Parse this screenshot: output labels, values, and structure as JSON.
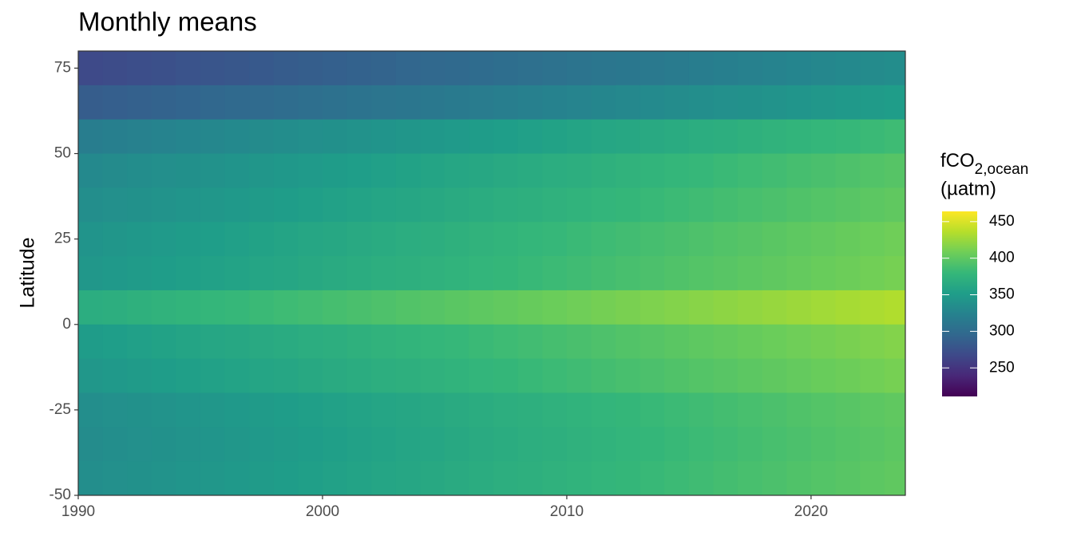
{
  "chart_data": {
    "type": "heatmap",
    "title": "Monthly means",
    "y_label": "Latitude",
    "legend_title": {
      "main": "fCO",
      "sub": "2,ocean",
      "unit": "(µatm)"
    },
    "colormap": "viridis",
    "x": [
      1990,
      1991,
      1992,
      1993,
      1994,
      1995,
      1996,
      1997,
      1998,
      1999,
      2000,
      2001,
      2002,
      2003,
      2004,
      2005,
      2006,
      2007,
      2008,
      2009,
      2010,
      2011,
      2012,
      2013,
      2014,
      2015,
      2016,
      2017,
      2018,
      2019,
      2020,
      2021,
      2022,
      2023
    ],
    "y": [
      70,
      60,
      50,
      40,
      30,
      20,
      10,
      0,
      -10,
      -20,
      -30,
      -40,
      -50
    ],
    "z": [
      [
        268,
        270,
        272,
        274,
        276,
        278,
        280,
        282,
        284,
        286,
        288,
        290,
        292,
        294,
        296,
        298,
        300,
        302,
        304,
        306,
        308,
        310,
        312,
        314,
        316,
        318,
        320,
        322,
        324,
        326,
        328,
        330,
        332,
        334
      ],
      [
        285,
        287,
        289,
        291,
        293,
        295,
        297,
        299,
        301,
        303,
        305,
        307,
        309,
        311,
        313,
        315,
        317,
        319,
        321,
        323,
        325,
        327,
        329,
        331,
        333,
        335,
        337,
        339,
        341,
        343,
        345,
        347,
        349,
        351
      ],
      [
        318,
        320,
        322,
        324,
        326,
        328,
        330,
        332,
        334,
        336,
        338,
        340,
        342,
        344,
        346,
        348,
        350,
        352,
        354,
        356,
        358,
        360,
        362,
        364,
        366,
        368,
        370,
        372,
        374,
        376,
        378,
        380,
        382,
        384
      ],
      [
        330,
        332,
        334,
        336,
        338,
        340,
        342,
        344,
        346,
        348,
        350,
        352,
        354,
        356,
        358,
        360,
        362,
        364,
        366,
        368,
        370,
        372,
        374,
        376,
        378,
        380,
        382,
        384,
        386,
        388,
        390,
        392,
        394,
        396
      ],
      [
        335,
        337,
        339,
        341,
        343,
        345,
        347,
        349,
        351,
        353,
        355,
        357,
        359,
        361,
        363,
        365,
        367,
        369,
        371,
        373,
        375,
        377,
        379,
        381,
        383,
        385,
        387,
        389,
        391,
        393,
        395,
        397,
        399,
        401
      ],
      [
        342,
        344,
        346,
        348,
        350,
        352,
        354,
        356,
        358,
        360,
        362,
        364,
        366,
        368,
        370,
        372,
        374,
        376,
        378,
        380,
        382,
        384,
        386,
        388,
        390,
        392,
        394,
        396,
        398,
        400,
        402,
        404,
        406,
        408
      ],
      [
        345,
        347,
        349,
        351,
        353,
        355,
        357,
        359,
        361,
        363,
        365,
        367,
        369,
        371,
        373,
        375,
        377,
        379,
        381,
        383,
        385,
        387,
        389,
        391,
        393,
        395,
        397,
        399,
        401,
        403,
        405,
        407,
        409,
        411
      ],
      [
        368,
        370,
        372,
        374,
        376,
        378,
        380,
        382,
        384,
        386,
        388,
        390,
        392,
        394,
        396,
        398,
        400,
        402,
        404,
        406,
        408,
        410,
        412,
        414,
        416,
        418,
        420,
        422,
        424,
        426,
        428,
        430,
        432,
        434
      ],
      [
        350,
        352,
        354,
        356,
        358,
        360,
        362,
        364,
        366,
        368,
        370,
        372,
        374,
        376,
        378,
        380,
        382,
        384,
        386,
        388,
        390,
        392,
        394,
        396,
        398,
        400,
        402,
        404,
        406,
        408,
        410,
        412,
        414,
        416
      ],
      [
        345,
        347,
        349,
        351,
        353,
        355,
        357,
        359,
        361,
        363,
        365,
        367,
        369,
        371,
        373,
        375,
        377,
        379,
        381,
        383,
        385,
        387,
        389,
        391,
        393,
        395,
        397,
        399,
        401,
        403,
        405,
        407,
        409,
        411
      ],
      [
        335,
        337,
        339,
        341,
        343,
        345,
        347,
        349,
        351,
        353,
        355,
        357,
        359,
        361,
        363,
        365,
        367,
        369,
        371,
        373,
        375,
        377,
        379,
        381,
        383,
        385,
        387,
        389,
        391,
        393,
        395,
        397,
        399,
        401
      ],
      [
        333,
        335,
        337,
        339,
        341,
        343,
        345,
        347,
        349,
        351,
        353,
        355,
        357,
        359,
        361,
        363,
        365,
        367,
        369,
        371,
        373,
        375,
        377,
        379,
        381,
        383,
        385,
        387,
        389,
        391,
        393,
        395,
        397,
        399
      ],
      [
        335,
        337,
        339,
        341,
        343,
        345,
        347,
        349,
        351,
        353,
        355,
        357,
        359,
        361,
        363,
        365,
        367,
        369,
        371,
        373,
        375,
        377,
        379,
        381,
        383,
        385,
        387,
        389,
        391,
        393,
        395,
        397,
        399,
        401
      ]
    ],
    "xlim": [
      1990,
      2023.86
    ],
    "xticks": [
      1990,
      2000,
      2010,
      2020
    ],
    "ylim": [
      -50,
      80
    ],
    "yticks": [
      -50,
      -25,
      0,
      25,
      50,
      75
    ],
    "zlim": [
      211,
      464
    ],
    "zticks": [
      250,
      300,
      350,
      400,
      450
    ]
  }
}
